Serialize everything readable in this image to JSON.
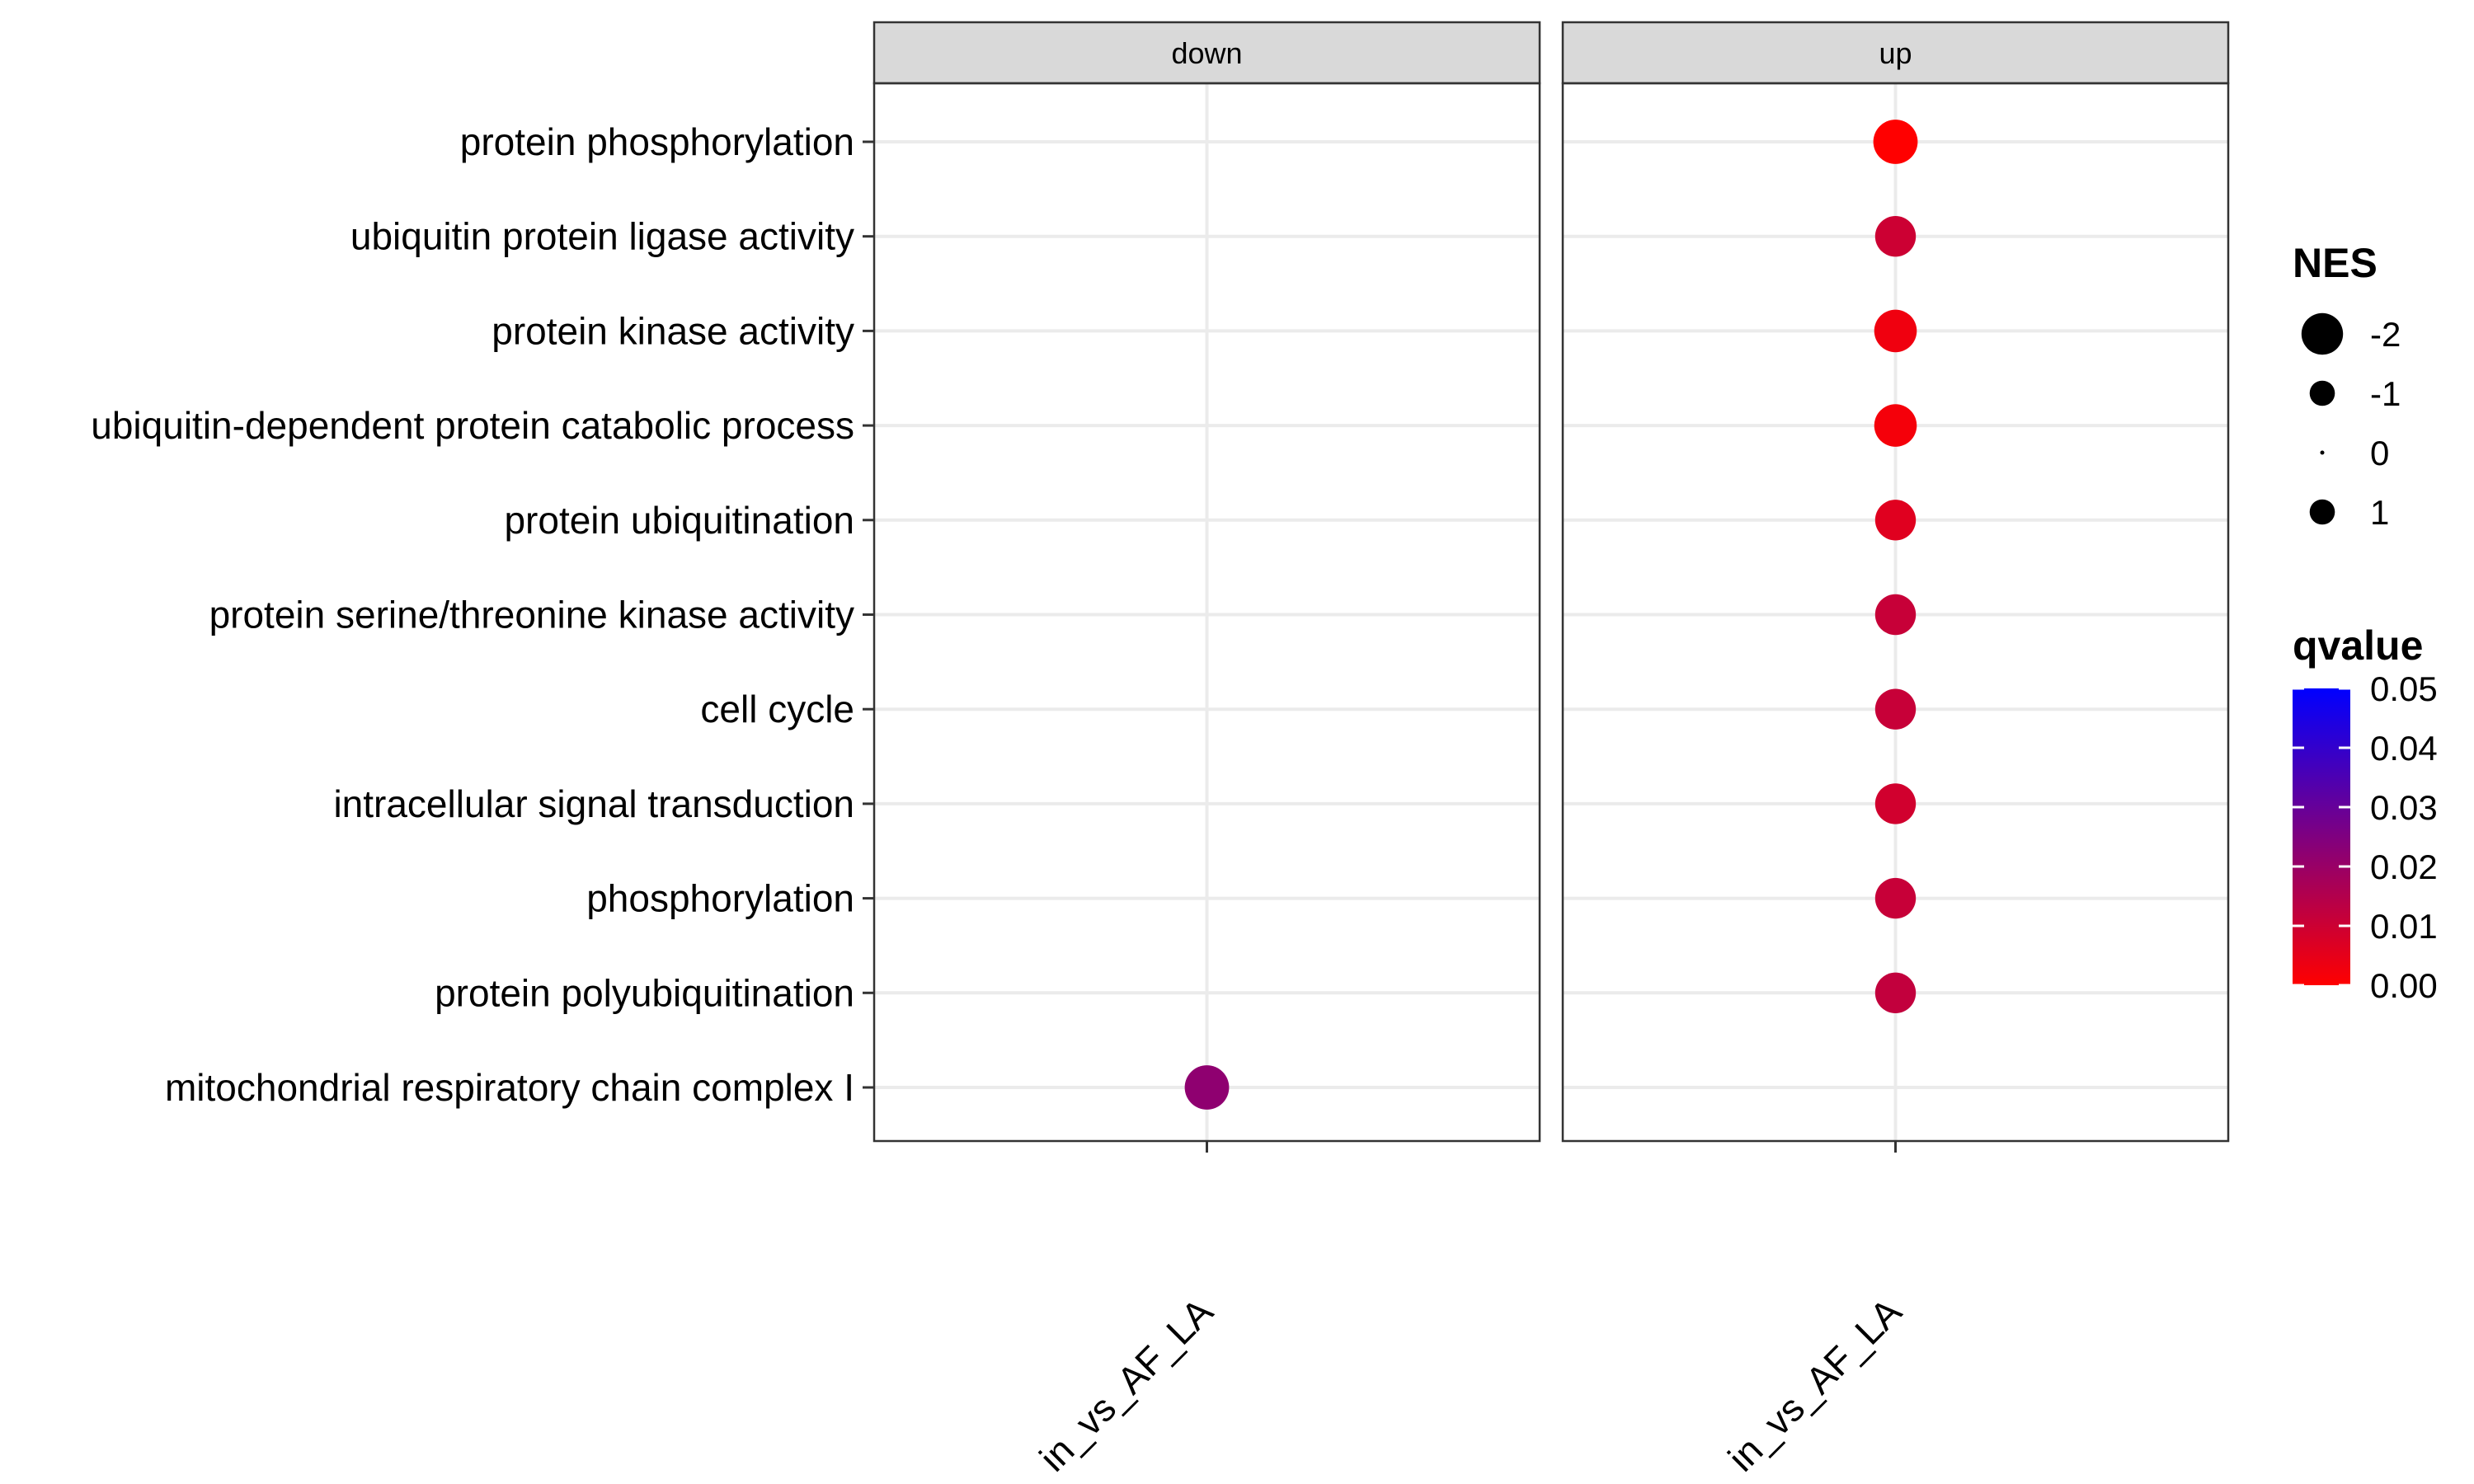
{
  "chart_data": {
    "type": "scatter",
    "facets": [
      "down",
      "up"
    ],
    "y_categories": [
      "protein phosphorylation",
      "ubiquitin protein ligase activity",
      "protein kinase activity",
      "ubiquitin-dependent protein catabolic process",
      "protein ubiquitination",
      "protein serine/threonine kinase activity",
      "cell cycle",
      "intracellular signal transduction",
      "phosphorylation",
      "protein polyubiquitination",
      "mitochondrial respiratory chain complex I"
    ],
    "x_tick_labels": {
      "down": "in_vs_AF_LA",
      "up": "in_vs_AF_LA"
    },
    "points": [
      {
        "facet": "up",
        "term": "protein phosphorylation",
        "NES": 1.9,
        "qvalue": 0.0
      },
      {
        "facet": "up",
        "term": "ubiquitin protein ligase activity",
        "NES": 1.7,
        "qvalue": 0.01
      },
      {
        "facet": "up",
        "term": "protein kinase activity",
        "NES": 1.8,
        "qvalue": 0.003
      },
      {
        "facet": "up",
        "term": "ubiquitin-dependent protein catabolic process",
        "NES": 1.8,
        "qvalue": 0.002
      },
      {
        "facet": "up",
        "term": "protein ubiquitination",
        "NES": 1.7,
        "qvalue": 0.006
      },
      {
        "facet": "up",
        "term": "protein serine/threonine kinase activity",
        "NES": 1.7,
        "qvalue": 0.011
      },
      {
        "facet": "up",
        "term": "cell cycle",
        "NES": 1.7,
        "qvalue": 0.011
      },
      {
        "facet": "up",
        "term": "intracellular signal transduction",
        "NES": 1.7,
        "qvalue": 0.009
      },
      {
        "facet": "up",
        "term": "phosphorylation",
        "NES": 1.7,
        "qvalue": 0.011
      },
      {
        "facet": "up",
        "term": "protein polyubiquitination",
        "NES": 1.7,
        "qvalue": 0.012
      },
      {
        "facet": "down",
        "term": "mitochondrial respiratory chain complex I",
        "NES": -1.9,
        "qvalue": 0.022
      }
    ],
    "legend_size": {
      "title": "NES",
      "labels": [
        "-2",
        "-1",
        "0",
        "1"
      ],
      "values": [
        -2,
        -1,
        0,
        1
      ]
    },
    "legend_color": {
      "title": "qvalue",
      "labels": [
        "0.05",
        "0.04",
        "0.03",
        "0.02",
        "0.01",
        "0.00"
      ],
      "values": [
        0.05,
        0.04,
        0.03,
        0.02,
        0.01,
        0.0
      ],
      "range": [
        0,
        0.05
      ],
      "low_color": "#ff0000",
      "high_color": "#0000ff"
    },
    "grid": true,
    "legend_position": "right",
    "colors": {
      "strip_fill": "#d9d9d9",
      "panel_border": "#333333",
      "grid_line": "#ebebeb"
    }
  }
}
